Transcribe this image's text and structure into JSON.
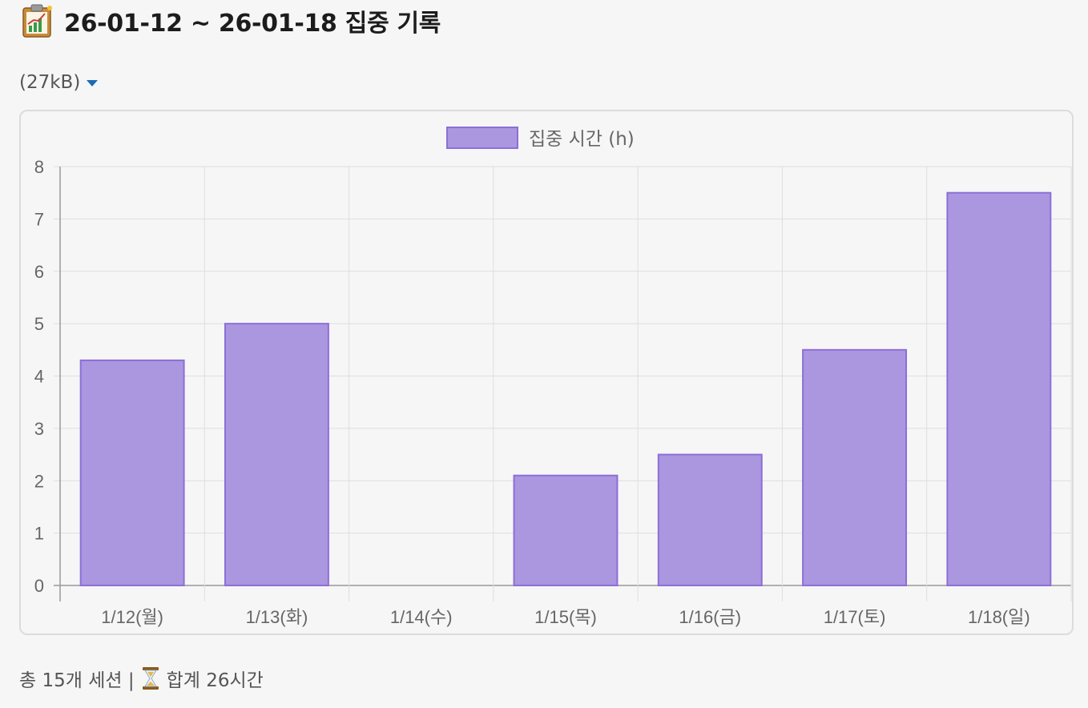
{
  "header": {
    "icon": "clipboard-chart-icon",
    "title": "26-01-12 ~ 26-01-18 집중 기록"
  },
  "attachment": {
    "size_label": "(27kB)",
    "toggle_icon": "caret-down-icon"
  },
  "chart_data": {
    "type": "bar",
    "categories": [
      "1/12(월)",
      "1/13(화)",
      "1/14(수)",
      "1/15(목)",
      "1/16(금)",
      "1/17(토)",
      "1/18(일)"
    ],
    "series": [
      {
        "name": "집중 시간 (h)",
        "values": [
          4.3,
          5,
          0,
          2.1,
          2.5,
          4.5,
          7.5
        ]
      }
    ],
    "ylim": [
      0,
      8
    ],
    "yticks": [
      "0",
      "1",
      "2",
      "3",
      "4",
      "5",
      "6",
      "7",
      "8"
    ],
    "grid": true,
    "legend_position": "top",
    "colors": {
      "fill": "#ab96e0",
      "stroke": "#8c6fd6"
    }
  },
  "footer": {
    "sessions_text": "총 15개 세션 |",
    "hourglass_icon": "hourglass-icon",
    "total_text": "합계 26시간"
  }
}
